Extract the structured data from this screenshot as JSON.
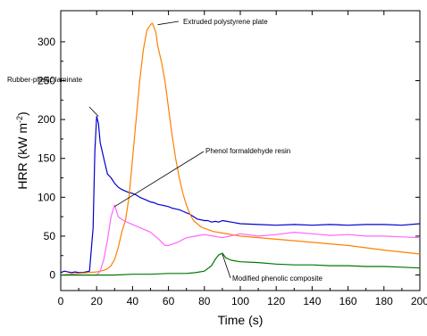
{
  "chart_data": {
    "type": "line",
    "title": "",
    "xlabel": "Time (s)",
    "ylabel_main": "HRR (kW m",
    "ylabel_exp": "-2",
    "ylabel_close": ")",
    "xlim": [
      0,
      200
    ],
    "ylim": [
      -20,
      340
    ],
    "xticks": [
      0,
      20,
      40,
      60,
      80,
      100,
      120,
      140,
      160,
      180,
      200
    ],
    "yticks": [
      0,
      50,
      100,
      150,
      200,
      250,
      300
    ],
    "grid": false,
    "series": [
      {
        "name": "Rubber-plastic laminate",
        "color": "#0000cc",
        "x": [
          0,
          2,
          4,
          6,
          8,
          10,
          12,
          14,
          16,
          18,
          19,
          20,
          21,
          22,
          24,
          26,
          28,
          30,
          32,
          34,
          36,
          38,
          40,
          42,
          44,
          46,
          48,
          50,
          52,
          54,
          56,
          58,
          60,
          62,
          64,
          66,
          68,
          70,
          72,
          74,
          76,
          78,
          80,
          82,
          84,
          86,
          88,
          90,
          95,
          100,
          110,
          120,
          130,
          140,
          150,
          160,
          170,
          180,
          190,
          200
        ],
        "y": [
          3,
          5,
          4,
          3,
          4,
          3,
          3,
          4,
          5,
          60,
          160,
          204,
          195,
          170,
          150,
          130,
          125,
          118,
          113,
          110,
          108,
          106,
          105,
          103,
          100,
          98,
          96,
          94,
          93,
          91,
          90,
          89,
          88,
          86,
          85,
          84,
          82,
          80,
          78,
          75,
          72,
          71,
          70,
          70,
          68,
          69,
          68,
          70,
          68,
          66,
          65,
          64,
          65,
          64,
          65,
          64,
          65,
          65,
          64,
          66
        ]
      },
      {
        "name": "Extruded polystyrene plate",
        "color": "#ff8000",
        "x": [
          0,
          5,
          10,
          15,
          20,
          22,
          24,
          26,
          28,
          30,
          32,
          34,
          36,
          38,
          40,
          42,
          44,
          46,
          48,
          50,
          51,
          52,
          53,
          54,
          56,
          58,
          60,
          62,
          64,
          66,
          68,
          70,
          72,
          74,
          76,
          78,
          80,
          85,
          90,
          100,
          120,
          140,
          160,
          180,
          200
        ],
        "y": [
          0,
          1,
          2,
          3,
          4,
          5,
          6,
          8,
          12,
          20,
          35,
          55,
          70,
          100,
          150,
          200,
          250,
          290,
          315,
          322,
          324,
          318,
          312,
          295,
          275,
          250,
          215,
          180,
          150,
          125,
          105,
          90,
          78,
          70,
          66,
          62,
          60,
          56,
          54,
          50,
          46,
          42,
          38,
          32,
          27
        ]
      },
      {
        "name": "Phenol formaldehyde resin",
        "color": "#ff66ff",
        "x": [
          0,
          10,
          20,
          22,
          24,
          26,
          28,
          30,
          32,
          35,
          40,
          45,
          50,
          55,
          58,
          60,
          65,
          70,
          75,
          80,
          85,
          90,
          100,
          110,
          120,
          130,
          140,
          150,
          160,
          170,
          180,
          190,
          200
        ],
        "y": [
          0,
          0,
          0,
          5,
          20,
          45,
          75,
          90,
          75,
          70,
          65,
          60,
          55,
          45,
          38,
          38,
          42,
          48,
          50,
          52,
          50,
          48,
          53,
          50,
          52,
          55,
          53,
          51,
          52,
          50,
          50,
          49,
          48
        ]
      },
      {
        "name": "Modified phenolic composite",
        "color": "#007700",
        "x": [
          0,
          10,
          20,
          30,
          40,
          50,
          60,
          70,
          75,
          80,
          84,
          86,
          88,
          90,
          92,
          95,
          100,
          110,
          120,
          130,
          140,
          150,
          160,
          170,
          180,
          190,
          200
        ],
        "y": [
          0,
          0,
          0,
          0,
          1,
          1,
          2,
          2,
          3,
          5,
          12,
          20,
          26,
          28,
          22,
          19,
          17,
          16,
          14,
          13,
          13,
          12,
          12,
          11,
          11,
          10,
          9
        ]
      }
    ],
    "annotations": [
      {
        "text": "Rubber-plastic laminate",
        "series": "Rubber-plastic laminate"
      },
      {
        "text": "Extruded polystyrene plate",
        "series": "Extruded polystyrene plate"
      },
      {
        "text": "Phenol formaldehyde resin",
        "series": "Phenol formaldehyde resin"
      },
      {
        "text": "Modified phenolic composite",
        "series": "Modified phenolic composite"
      }
    ]
  }
}
